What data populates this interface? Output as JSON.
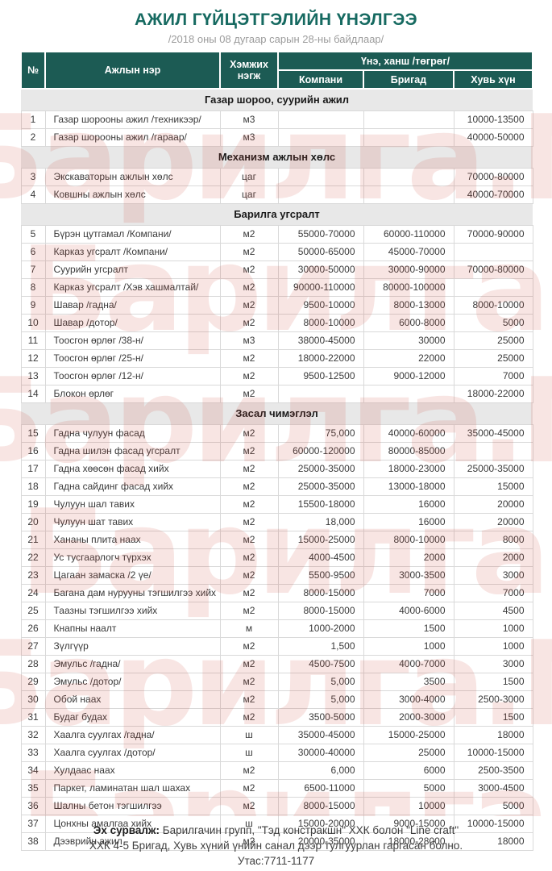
{
  "page": {
    "title": "АЖИЛ ГҮЙЦЭТГЭЛИЙН ҮНЭЛГЭЭ",
    "subtitle": "/2018 оны 08 дугаар сарын 28-ны байдлаар/",
    "watermark_text": "Барилга.МН",
    "accent_color": "#1C5B54",
    "watermark_color": "#CE463C"
  },
  "table": {
    "columns": {
      "no": "№",
      "name": "Ажлын нэр",
      "unit": "Хэмжих нэгж",
      "price_group": "Үнэ, ханш /төгрөг/",
      "company": "Компани",
      "brigade": "Бригад",
      "individual": "Хувь хүн"
    },
    "sections": [
      {
        "title": "Газар шороо, суурийн ажил",
        "rows": [
          [
            "1",
            "Газар шорооны ажил /техникээр/",
            "м3",
            "",
            "",
            "10000-13500"
          ],
          [
            "2",
            "Газар шорооны ажил /гараар/",
            "м3",
            "",
            "",
            "40000-50000"
          ]
        ]
      },
      {
        "title": "Механизм ажлын хөлс",
        "rows": [
          [
            "3",
            "Экскаваторын ажлын хөлс",
            "цаг",
            "",
            "",
            "70000-80000"
          ],
          [
            "4",
            "Ковшны ажлын хөлс",
            "цаг",
            "",
            "",
            "40000-70000"
          ]
        ]
      },
      {
        "title": "Барилга угсралт",
        "rows": [
          [
            "5",
            "Бүрэн цутгамал /Компани/",
            "м2",
            "55000-70000",
            "60000-110000",
            "70000-90000"
          ],
          [
            "6",
            "Карказ угсралт /Компани/",
            "м2",
            "50000-65000",
            "45000-70000",
            ""
          ],
          [
            "7",
            "Суурийн угсралт",
            "м2",
            "30000-50000",
            "30000-90000",
            "70000-80000"
          ],
          [
            "8",
            "Карказ угсралт /Хэв хашмалтай/",
            "м2",
            "90000-110000",
            "80000-100000",
            ""
          ],
          [
            "9",
            "Шавар /гадна/",
            "м2",
            "9500-10000",
            "8000-13000",
            "8000-10000"
          ],
          [
            "10",
            "Шавар /дотор/",
            "м2",
            "8000-10000",
            "6000-8000",
            "5000"
          ],
          [
            "11",
            "Тоосгон өрлөг /38-н/",
            "м3",
            "38000-45000",
            "30000",
            "25000"
          ],
          [
            "12",
            "Тоосгон өрлөг /25-н/",
            "м2",
            "18000-22000",
            "22000",
            "25000"
          ],
          [
            "13",
            "Тоосгон өрлөг /12-н/",
            "м2",
            "9500-12500",
            "9000-12000",
            "7000"
          ],
          [
            "14",
            "Блокон өрлөг",
            "м2",
            "",
            "",
            "18000-22000"
          ]
        ]
      },
      {
        "title": "Засал чимэглэл",
        "rows": [
          [
            "15",
            "Гадна чулуун фасад",
            "м2",
            "75,000",
            "40000-60000",
            "35000-45000"
          ],
          [
            "16",
            "Гадна шилэн фасад угсралт",
            "м2",
            "60000-120000",
            "80000-85000",
            ""
          ],
          [
            "17",
            "Гадна хөөсөн фасад хийх",
            "м2",
            "25000-35000",
            "18000-23000",
            "25000-35000"
          ],
          [
            "18",
            "Гадна сайдинг фасад хийх",
            "м2",
            "25000-35000",
            "13000-18000",
            "15000"
          ],
          [
            "19",
            "Чулуун шал тавих",
            "м2",
            "15500-18000",
            "16000",
            "20000"
          ],
          [
            "20",
            "Чулуун шат тавих",
            "м2",
            "18,000",
            "16000",
            "20000"
          ],
          [
            "21",
            "Хананы плита наах",
            "м2",
            "15000-25000",
            "8000-10000",
            "8000"
          ],
          [
            "22",
            "Ус тусгаарлогч түрхэх",
            "м2",
            "4000-4500",
            "2000",
            "2000"
          ],
          [
            "23",
            "Цагаан замаска /2 үе/",
            "м2",
            "5500-9500",
            "3000-3500",
            "3000"
          ],
          [
            "24",
            "Багана дам нурууны тэгшилгээ хийх",
            "м2",
            "8000-15000",
            "7000",
            "7000"
          ],
          [
            "25",
            "Таазны тэгшилгээ хийх",
            "м2",
            "8000-15000",
            "4000-6000",
            "4500"
          ],
          [
            "26",
            "Кнапны наалт",
            "м",
            "1000-2000",
            "1500",
            "1000"
          ],
          [
            "27",
            "Зүлгүүр",
            "м2",
            "1,500",
            "1000",
            "1000"
          ],
          [
            "28",
            "Эмульс /гадна/",
            "м2",
            "4500-7500",
            "4000-7000",
            "3000"
          ],
          [
            "29",
            "Эмульс /дотор/",
            "м2",
            "5,000",
            "3500",
            "1500"
          ],
          [
            "30",
            "Обой наах",
            "м2",
            "5,000",
            "3000-4000",
            "2500-3000"
          ],
          [
            "31",
            "Будаг будах",
            "м2",
            "3500-5000",
            "2000-3000",
            "1500"
          ],
          [
            "32",
            "Хаалга суулгах /гадна/",
            "ш",
            "35000-45000",
            "15000-25000",
            "18000"
          ],
          [
            "33",
            "Хаалга суулгах /дотор/",
            "ш",
            "30000-40000",
            "25000",
            "10000-15000"
          ],
          [
            "34",
            "Хулдаас наах",
            "м2",
            "6,000",
            "6000",
            "2500-3500"
          ],
          [
            "35",
            "Паркет, ламинатан шал шахах",
            "м2",
            "6500-11000",
            "5000",
            "3000-4500"
          ],
          [
            "36",
            "Шалны бетон тэгшилгээ",
            "м2",
            "8000-15000",
            "10000",
            "5000"
          ],
          [
            "37",
            "Цонхны амалгаа хийх",
            "ш",
            "15000-20000",
            "9000-15000",
            "10000-15000"
          ],
          [
            "38",
            "Дээврийн ажил",
            "м2",
            "20000-35000",
            "18000-28000",
            "18000"
          ]
        ]
      }
    ]
  },
  "footer": {
    "source_label": "Эх сурвалж:",
    "source_text": "Барилгачин групп, \"Тэд констракшн\" ХХК болон \"Line craft\"",
    "line2": "ХХК 4-5 Бригад, Хувь хүний үнийн санал дээр тулгуурлан гаргасан болно.",
    "phone": "Утас:7711-1177"
  }
}
